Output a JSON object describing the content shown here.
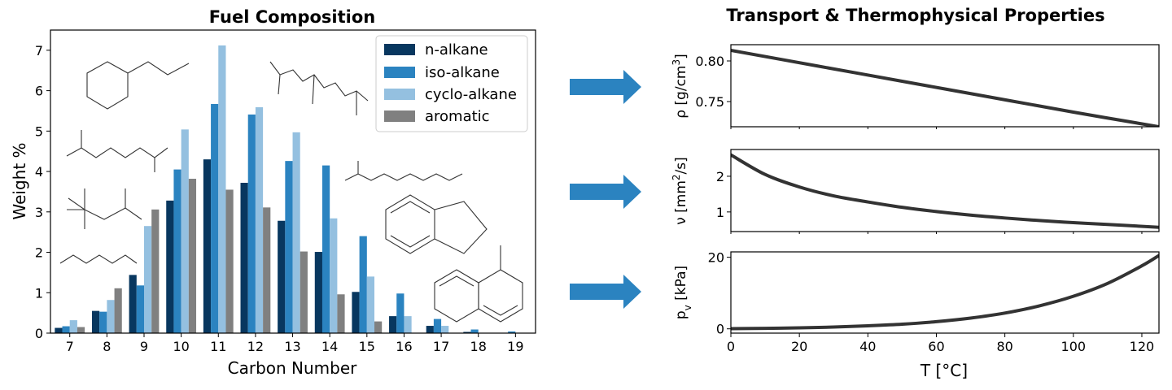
{
  "left_panel": {
    "title": "Fuel Composition",
    "xlabel": "Carbon Number",
    "ylabel": "Weight %"
  },
  "right_panel": {
    "title": "Transport & Thermophysical Properties",
    "xlabel": "T [°C]",
    "rho_label": "ρ [g/cm³]",
    "nu_label": "ν [mm²/s]",
    "pv_label": "p_v [kPa]"
  },
  "colors": {
    "n_alkane": "#08375f",
    "iso_alkane": "#2b83c0",
    "cyclo_alkane": "#94c0e0",
    "aromatic": "#808080",
    "arrow": "#2b83c0",
    "property_line": "#333333"
  },
  "chart_data": [
    {
      "type": "bar",
      "title": "Fuel Composition",
      "xlabel": "Carbon Number",
      "ylabel": "Weight %",
      "categories": [
        "7",
        "8",
        "9",
        "10",
        "11",
        "12",
        "13",
        "14",
        "15",
        "16",
        "17",
        "18",
        "19"
      ],
      "ylim": [
        0,
        7.5
      ],
      "yticks": [
        0,
        1,
        2,
        3,
        4,
        5,
        6,
        7
      ],
      "legend_position": "top-right",
      "series": [
        {
          "name": "n-alkane",
          "values": [
            0.13,
            0.55,
            1.44,
            3.28,
            4.3,
            3.72,
            2.78,
            2.01,
            1.02,
            0.42,
            0.18,
            0.03,
            0.0
          ]
        },
        {
          "name": "iso-alkane",
          "values": [
            0.17,
            0.53,
            1.18,
            4.05,
            5.67,
            5.41,
            4.26,
            4.15,
            2.4,
            0.98,
            0.35,
            0.09,
            0.04
          ]
        },
        {
          "name": "cyclo-alkane",
          "values": [
            0.32,
            0.82,
            2.65,
            5.04,
            7.12,
            5.59,
            4.97,
            2.84,
            1.4,
            0.42,
            0.18,
            0.0,
            0.0
          ]
        },
        {
          "name": "aromatic",
          "values": [
            0.15,
            1.11,
            3.06,
            3.82,
            3.55,
            3.11,
            2.02,
            0.96,
            0.29,
            0.0,
            0.0,
            0.0,
            0.0
          ]
        }
      ]
    },
    {
      "type": "line",
      "ylabel": "ρ [g/cm³]",
      "xlim": [
        0,
        125
      ],
      "ylim": [
        0.719,
        0.82
      ],
      "yticks": [
        0.75,
        0.8
      ],
      "x": [
        0,
        25,
        50,
        75,
        100,
        125
      ],
      "series": [
        {
          "values": [
            0.813,
            0.794,
            0.775,
            0.756,
            0.737,
            0.719
          ]
        }
      ]
    },
    {
      "type": "line",
      "ylabel": "ν [mm²/s]",
      "xlim": [
        0,
        125
      ],
      "ylim": [
        0.45,
        2.75
      ],
      "yticks": [
        1,
        2
      ],
      "x": [
        0,
        10,
        20,
        30,
        40,
        50,
        60,
        70,
        80,
        90,
        100,
        110,
        125
      ],
      "series": [
        {
          "values": [
            2.6,
            2.05,
            1.7,
            1.45,
            1.28,
            1.13,
            1.01,
            0.91,
            0.83,
            0.76,
            0.7,
            0.65,
            0.57
          ]
        }
      ]
    },
    {
      "type": "line",
      "ylabel": "p_v [kPa]",
      "xlabel": "T [°C]",
      "xlim": [
        0,
        125
      ],
      "ylim": [
        -1.2,
        21.5
      ],
      "yticks": [
        0,
        20
      ],
      "xticks": [
        0,
        20,
        40,
        60,
        80,
        100,
        120
      ],
      "x": [
        0,
        10,
        20,
        30,
        40,
        50,
        60,
        70,
        80,
        90,
        100,
        110,
        120,
        125
      ],
      "series": [
        {
          "values": [
            0.05,
            0.13,
            0.28,
            0.5,
            0.85,
            1.3,
            2.0,
            3.0,
            4.4,
            6.4,
            9.1,
            12.7,
            17.6,
            20.5
          ]
        }
      ]
    }
  ]
}
